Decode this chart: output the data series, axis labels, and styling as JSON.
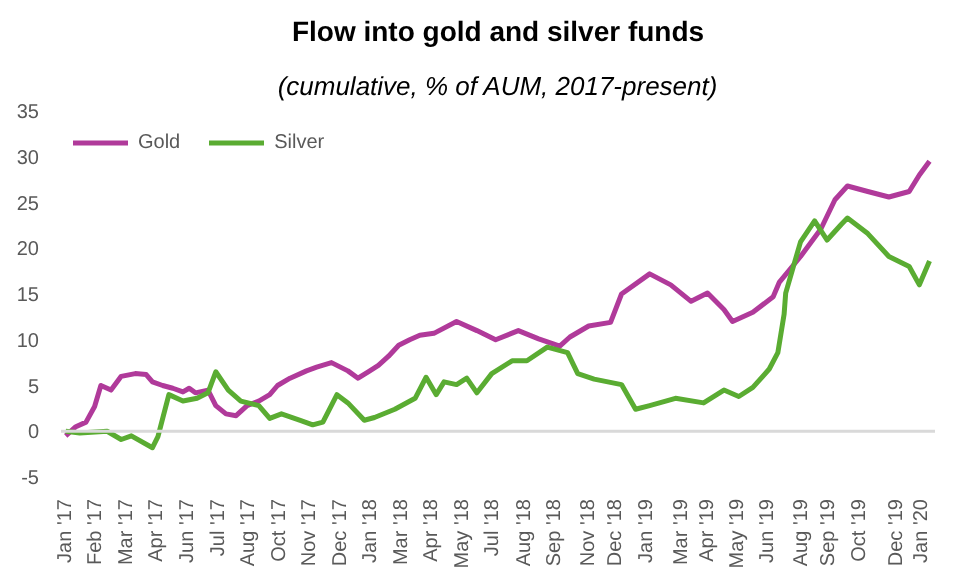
{
  "chart_data": {
    "type": "line",
    "title": "Flow into gold and silver funds",
    "subtitle": "(cumulative, % of AUM, 2017-present)",
    "xlim": [
      "2016-12-26",
      "2020-01-18"
    ],
    "xticks": [
      {
        "value": "2017-01-01",
        "label": "Jan '17"
      },
      {
        "value": "2017-02-09",
        "label": "Feb '17"
      },
      {
        "value": "2017-03-20",
        "label": "Mar '17"
      },
      {
        "value": "2017-04-28",
        "label": "Apr '17"
      },
      {
        "value": "2017-06-06",
        "label": "Jun '17"
      },
      {
        "value": "2017-07-16",
        "label": "Jul '17"
      },
      {
        "value": "2017-08-24",
        "label": "Aug '17"
      },
      {
        "value": "2017-10-02",
        "label": "Oct '17"
      },
      {
        "value": "2017-11-10",
        "label": "Nov '17"
      },
      {
        "value": "2017-12-19",
        "label": "Dec '17"
      },
      {
        "value": "2018-01-27",
        "label": "Jan '18"
      },
      {
        "value": "2018-03-07",
        "label": "Mar '18"
      },
      {
        "value": "2018-04-15",
        "label": "Apr '18"
      },
      {
        "value": "2018-05-24",
        "label": "May '18"
      },
      {
        "value": "2018-07-02",
        "label": "Jul '18"
      },
      {
        "value": "2018-08-11",
        "label": "Aug '18"
      },
      {
        "value": "2018-09-19",
        "label": "Sep '18"
      },
      {
        "value": "2018-11-01",
        "label": "Nov '18"
      },
      {
        "value": "2018-12-06",
        "label": "Dec '18"
      },
      {
        "value": "2019-01-14",
        "label": "Jan '19"
      },
      {
        "value": "2019-03-01",
        "label": "Mar '19"
      },
      {
        "value": "2019-04-02",
        "label": "Apr '19"
      },
      {
        "value": "2019-05-11",
        "label": "May '19"
      },
      {
        "value": "2019-06-19",
        "label": "Jun '19"
      },
      {
        "value": "2019-08-01",
        "label": "Aug '19"
      },
      {
        "value": "2019-09-05",
        "label": "Sep '19"
      },
      {
        "value": "2019-10-14",
        "label": "Oct '19"
      },
      {
        "value": "2019-12-01",
        "label": "Dec '19"
      },
      {
        "value": "2020-01-01",
        "label": "Jan '20"
      }
    ],
    "ylim": [
      -5,
      35
    ],
    "yticks": [
      -5,
      0,
      5,
      10,
      15,
      20,
      25,
      30,
      35
    ],
    "grid": false,
    "legend": "top left",
    "line_style": "solid",
    "marker": "none",
    "ref_lines": [
      {
        "axis": "y",
        "value": 0,
        "color": "#d9d9d9"
      }
    ],
    "series": [
      {
        "name": "Gold",
        "color": "#b03a9a",
        "x": [
          "2017-01-01",
          "2017-01-14",
          "2017-01-27",
          "2017-02-07",
          "2017-02-15",
          "2017-02-28",
          "2017-03-13",
          "2017-03-31",
          "2017-04-14",
          "2017-04-22",
          "2017-05-05",
          "2017-05-18",
          "2017-05-31",
          "2017-06-08",
          "2017-06-16",
          "2017-07-02",
          "2017-07-12",
          "2017-07-25",
          "2017-08-07",
          "2017-08-21",
          "2017-09-05",
          "2017-09-19",
          "2017-09-29",
          "2017-10-15",
          "2017-11-05",
          "2017-11-18",
          "2017-12-07",
          "2017-12-28",
          "2018-01-10",
          "2018-01-23",
          "2018-02-05",
          "2018-02-18",
          "2018-03-03",
          "2018-03-17",
          "2018-03-30",
          "2018-04-17",
          "2018-05-16",
          "2018-06-11",
          "2018-07-05",
          "2018-08-03",
          "2018-08-29",
          "2018-09-25",
          "2018-10-08",
          "2018-11-01",
          "2018-11-29",
          "2018-12-13",
          "2019-01-18",
          "2019-02-14",
          "2019-03-12",
          "2019-04-02",
          "2019-04-23",
          "2019-05-04",
          "2019-05-30",
          "2019-06-25",
          "2019-07-03",
          "2019-07-30",
          "2019-08-25",
          "2019-09-12",
          "2019-09-28",
          "2019-10-24",
          "2019-11-20",
          "2019-12-16",
          "2019-12-29",
          "2020-01-11"
        ],
        "values": [
          -0.5,
          0.5,
          1,
          2.7,
          5,
          4.5,
          6,
          6.3,
          6.2,
          5.4,
          5,
          4.7,
          4.3,
          4.7,
          4.2,
          4.5,
          2.8,
          1.9,
          1.7,
          2.8,
          3.3,
          4,
          5,
          5.8,
          6.6,
          7,
          7.5,
          6.6,
          5.8,
          6.5,
          7.2,
          8.2,
          9.4,
          10,
          10.5,
          10.7,
          12,
          11,
          10,
          11,
          10.1,
          9.3,
          10.3,
          11.5,
          11.9,
          15,
          17.2,
          16,
          14.2,
          15.1,
          13.3,
          12,
          13,
          14.7,
          16.3,
          19.1,
          22.1,
          25.3,
          26.8,
          26.2,
          25.6,
          26.2,
          28,
          29.5
        ]
      },
      {
        "name": "Silver",
        "color": "#5aac32",
        "x": [
          "2017-01-01",
          "2017-01-19",
          "2017-02-23",
          "2017-03-13",
          "2017-03-26",
          "2017-04-22",
          "2017-04-29",
          "2017-05-13",
          "2017-05-31",
          "2017-06-18",
          "2017-07-02",
          "2017-07-12",
          "2017-07-28",
          "2017-08-13",
          "2017-09-05",
          "2017-09-19",
          "2017-10-04",
          "2017-10-28",
          "2017-11-13",
          "2017-11-26",
          "2017-12-14",
          "2017-12-28",
          "2018-01-18",
          "2018-01-31",
          "2018-02-26",
          "2018-03-24",
          "2018-04-07",
          "2018-04-20",
          "2018-04-30",
          "2018-05-16",
          "2018-05-29",
          "2018-06-11",
          "2018-06-30",
          "2018-07-26",
          "2018-08-14",
          "2018-09-09",
          "2018-10-05",
          "2018-10-18",
          "2018-11-08",
          "2018-12-13",
          "2018-12-31",
          "2019-01-18",
          "2019-02-20",
          "2019-03-28",
          "2019-04-23",
          "2019-05-12",
          "2019-05-30",
          "2019-06-20",
          "2019-07-01",
          "2019-07-09",
          "2019-07-11",
          "2019-07-30",
          "2019-08-17",
          "2019-09-02",
          "2019-09-20",
          "2019-09-28",
          "2019-10-24",
          "2019-11-20",
          "2019-12-16",
          "2019-12-29",
          "2020-01-11"
        ],
        "values": [
          0,
          -0.2,
          0,
          -0.9,
          -0.5,
          -1.8,
          -0.6,
          4,
          3.3,
          3.6,
          4.2,
          6.5,
          4.5,
          3.3,
          2.8,
          1.4,
          1.9,
          1.2,
          0.7,
          1,
          4,
          3.1,
          1.2,
          1.5,
          2.4,
          3.6,
          5.9,
          4,
          5.4,
          5.1,
          5.8,
          4.2,
          6.3,
          7.7,
          7.7,
          9.2,
          8.6,
          6.3,
          5.7,
          5.1,
          2.4,
          2.8,
          3.6,
          3.1,
          4.5,
          3.8,
          4.8,
          6.8,
          8.6,
          12.8,
          15.1,
          20.7,
          23,
          20.9,
          22.6,
          23.3,
          21.6,
          19.1,
          18,
          16,
          18.6
        ]
      }
    ]
  }
}
